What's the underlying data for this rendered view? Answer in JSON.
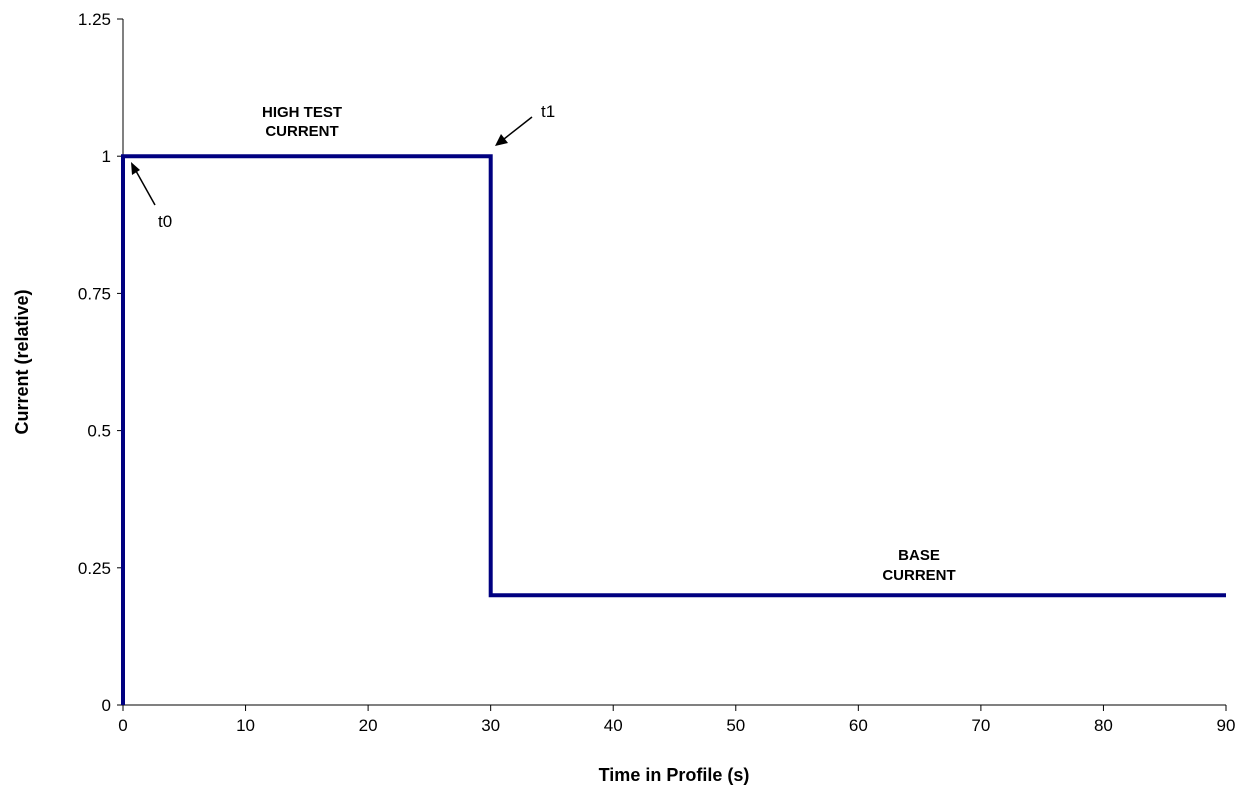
{
  "chart_data": {
    "type": "line",
    "title": "",
    "xlabel": "Time in Profile (s)",
    "ylabel": "Current (relative)",
    "xlim": [
      0,
      90
    ],
    "ylim": [
      0,
      1.25
    ],
    "xticks": [
      0,
      10,
      20,
      30,
      40,
      50,
      60,
      70,
      80,
      90
    ],
    "yticks": [
      0,
      0.25,
      0.5,
      0.75,
      1,
      1.25
    ],
    "ytick_labels": [
      "0",
      "0.25",
      "0.5",
      "0.75",
      "1",
      "1.25"
    ],
    "grid": false,
    "legend": "none",
    "series": [
      {
        "color": "#000080",
        "x": [
          0,
          0,
          30,
          30,
          90
        ],
        "y": [
          0,
          1,
          1,
          0.2,
          0.2
        ]
      }
    ],
    "annotations": {
      "high_test_current": [
        "HIGH TEST",
        "CURRENT"
      ],
      "base_current": [
        "BASE",
        "CURRENT"
      ],
      "t0": "t0",
      "t1": "t1"
    }
  }
}
